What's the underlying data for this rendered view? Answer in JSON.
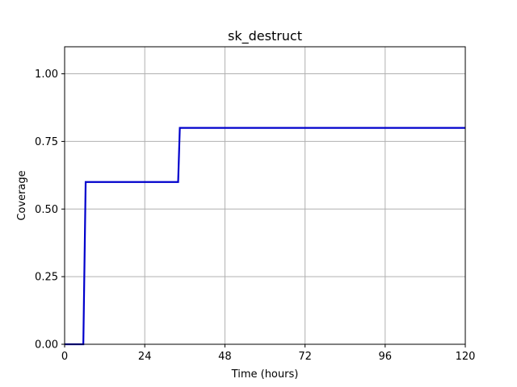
{
  "chart_data": {
    "type": "line",
    "title": "sk_destruct",
    "xlabel": "Time (hours)",
    "ylabel": "Coverage",
    "xlim": [
      0,
      120
    ],
    "ylim": [
      0,
      1.1
    ],
    "x_ticks": [
      0,
      24,
      48,
      72,
      96,
      120
    ],
    "x_tick_labels": [
      "0",
      "24",
      "48",
      "72",
      "96",
      "120"
    ],
    "y_ticks": [
      0,
      0.25,
      0.5,
      0.75,
      1.0
    ],
    "y_tick_labels": [
      "0.00",
      "0.25",
      "0.50",
      "0.75",
      "1.00"
    ],
    "grid": true,
    "series": [
      {
        "color": "#0000cc",
        "x": [
          0,
          5.6,
          6.3,
          34.0,
          34.5,
          120
        ],
        "y": [
          0,
          0,
          0.6,
          0.6,
          0.8,
          0.8
        ]
      }
    ]
  }
}
